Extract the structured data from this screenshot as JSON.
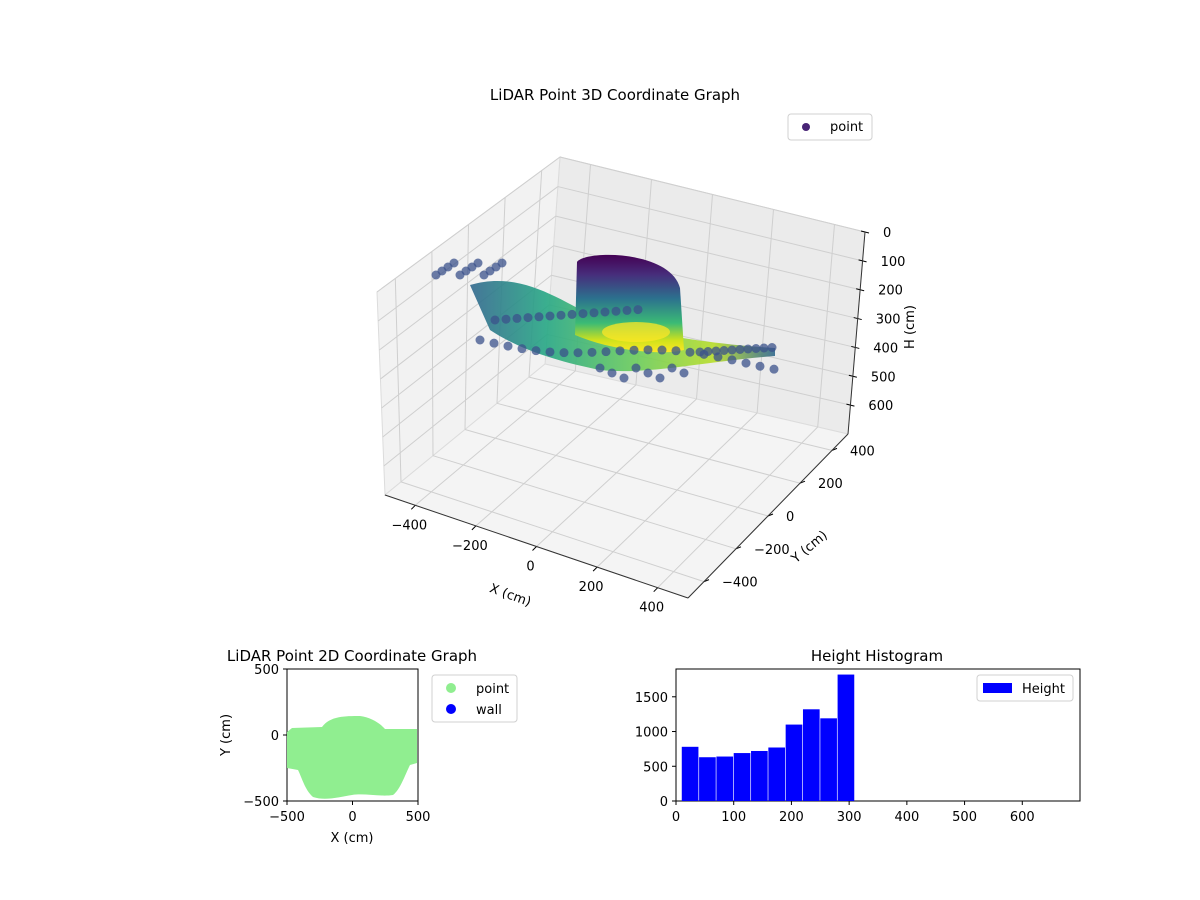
{
  "chart_data": [
    {
      "type": "scatter",
      "title": "LiDAR Point 3D Coordinate Graph",
      "xlabel": "X (cm)",
      "ylabel": "Y (cm)",
      "zlabel": "H (cm)",
      "xlim": [
        -500,
        500
      ],
      "ylim": [
        -500,
        500
      ],
      "zlim": [
        700,
        0
      ],
      "xticks": [
        -400,
        -200,
        0,
        200,
        400
      ],
      "yticks": [
        -400,
        -200,
        0,
        200,
        400
      ],
      "zticks": [
        0,
        100,
        200,
        300,
        400,
        500,
        600
      ],
      "legend": [
        {
          "name": "point",
          "color": "#482475"
        }
      ],
      "legend_position": "top-right",
      "colormap": "viridis",
      "grid": true
    },
    {
      "type": "scatter",
      "title": "LiDAR Point 2D Coordinate Graph",
      "xlabel": "X (cm)",
      "ylabel": "Y (cm)",
      "xlim": [
        -500,
        500
      ],
      "ylim": [
        -500,
        500
      ],
      "xticks": [
        -500,
        0,
        500
      ],
      "yticks": [
        -500,
        0,
        500
      ],
      "series": [
        {
          "name": "point",
          "color": "#90ee90"
        },
        {
          "name": "wall",
          "color": "#0000ff"
        }
      ],
      "legend_position": "outside-right",
      "grid": false
    },
    {
      "type": "bar",
      "title": "Height Histogram",
      "xlabel": "",
      "ylabel": "",
      "xlim": [
        0,
        700
      ],
      "ylim": [
        0,
        1900
      ],
      "xticks": [
        0,
        100,
        200,
        300,
        400,
        500,
        600
      ],
      "yticks": [
        0,
        500,
        1000,
        1500
      ],
      "bins": [
        [
          10,
          780
        ],
        [
          40,
          630
        ],
        [
          70,
          640
        ],
        [
          100,
          690
        ],
        [
          130,
          720
        ],
        [
          160,
          770
        ],
        [
          190,
          1100
        ],
        [
          220,
          1320
        ],
        [
          250,
          1190
        ],
        [
          280,
          1820
        ]
      ],
      "bin_width": 28,
      "series": [
        {
          "name": "Height",
          "color": "#0000ff"
        }
      ],
      "legend_position": "top-right",
      "grid": false
    }
  ]
}
